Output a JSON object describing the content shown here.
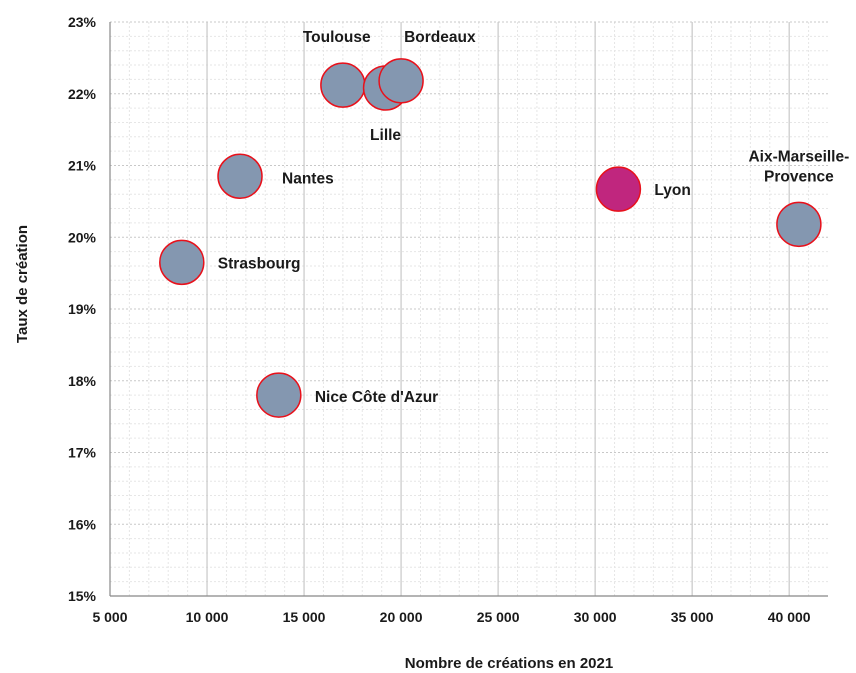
{
  "chart_data": {
    "type": "scatter",
    "title": "",
    "xlabel": "Nombre de créations en 2021",
    "ylabel": "Taux de création",
    "xlim": [
      5000,
      42000
    ],
    "ylim": [
      15,
      23
    ],
    "x_ticks": [
      5000,
      10000,
      15000,
      20000,
      25000,
      30000,
      35000,
      40000
    ],
    "x_tick_labels": [
      "5 000",
      "10 000",
      "15 000",
      "20 000",
      "25 000",
      "30 000",
      "35 000",
      "40 000"
    ],
    "y_ticks": [
      15,
      16,
      17,
      18,
      19,
      20,
      21,
      22,
      23
    ],
    "y_tick_labels": [
      "15%",
      "16%",
      "17%",
      "18%",
      "19%",
      "20%",
      "21%",
      "22%",
      "23%"
    ],
    "grid": true,
    "colors": {
      "default_fill": "#8497b0",
      "highlight_fill": "#c0267e",
      "stroke": "#e8111b",
      "major_grid": "#c8c8c8",
      "minor_grid": "#e6e6e6"
    },
    "points": [
      {
        "name": "Strasbourg",
        "x": 8700,
        "y": 19.65
      },
      {
        "name": "Nantes",
        "x": 11700,
        "y": 20.85
      },
      {
        "name": "Nice Côte d'Azur",
        "x": 13700,
        "y": 17.8
      },
      {
        "name": "Toulouse",
        "x": 17000,
        "y": 22.12
      },
      {
        "name": "Lille",
        "x": 19200,
        "y": 22.08
      },
      {
        "name": "Bordeaux",
        "x": 20000,
        "y": 22.18
      },
      {
        "name": "Lyon",
        "x": 31200,
        "y": 20.67,
        "highlight": true
      },
      {
        "name": "Aix-Marseille-\nProvence",
        "x": 40500,
        "y": 20.18
      }
    ]
  }
}
